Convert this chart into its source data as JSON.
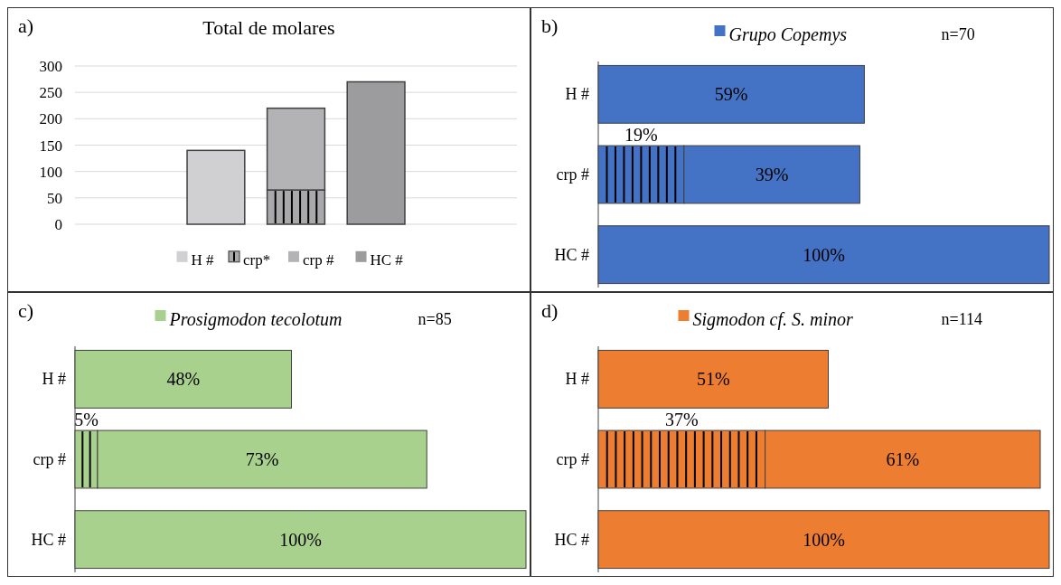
{
  "chart_data": [
    {
      "type": "bar",
      "title": "Total de molares",
      "annotations": [
        "a)"
      ],
      "categories": [
        null,
        null,
        null
      ],
      "stacked": true,
      "ylim": [
        0,
        300
      ],
      "yticks": [
        0,
        50,
        100,
        150,
        200,
        250,
        300
      ],
      "grid": "y",
      "legend": "bottom",
      "series": [
        {
          "name": "H #",
          "color": "#d0d0d2",
          "values": [
            140,
            null,
            null
          ]
        },
        {
          "name": "crp*",
          "color": "#a9a9ac",
          "line_style": "solid",
          "values": [
            null,
            65,
            null
          ]
        },
        {
          "name": "crp #",
          "color": "#b3b3b5",
          "values": [
            null,
            155,
            null
          ]
        },
        {
          "name": "HC #",
          "color": "#9c9c9f",
          "values": [
            null,
            null,
            270
          ]
        }
      ]
    },
    {
      "type": "bar",
      "orientation": "horizontal",
      "stacked": true,
      "subtitle": "n=70",
      "annotations": [
        "b)"
      ],
      "categories": [
        "H #",
        "crp #",
        "HC #"
      ],
      "legend": "top",
      "series": [
        {
          "color": "#4472c4",
          "line_style": "solid",
          "values": [
            null,
            19,
            null
          ],
          "value_labels": [
            null,
            "19%",
            null
          ]
        },
        {
          "name": "Grupo Copemys",
          "color": "#4472c4",
          "values": [
            59,
            39,
            100
          ],
          "value_labels": [
            "59%",
            "39%",
            "100%"
          ]
        }
      ]
    },
    {
      "type": "bar",
      "orientation": "horizontal",
      "stacked": true,
      "subtitle": "n=85",
      "annotations": [
        "c)"
      ],
      "categories": [
        "H #",
        "crp #",
        "HC #"
      ],
      "legend": "top",
      "series": [
        {
          "color": "#a9d18e",
          "line_style": "solid",
          "values": [
            null,
            5,
            null
          ],
          "value_labels": [
            null,
            "5%",
            null
          ]
        },
        {
          "name": "Prosigmodon tecolotum",
          "color": "#a9d18e",
          "values": [
            48,
            73,
            100
          ],
          "value_labels": [
            "48%",
            "73%",
            "100%"
          ]
        }
      ]
    },
    {
      "type": "bar",
      "orientation": "horizontal",
      "stacked": true,
      "subtitle": "n=114",
      "annotations": [
        "d)"
      ],
      "categories": [
        "H #",
        "crp #",
        "HC #"
      ],
      "legend": "top",
      "series": [
        {
          "color": "#ed7d31",
          "line_style": "solid",
          "values": [
            null,
            37,
            null
          ],
          "value_labels": [
            null,
            "37%",
            null
          ]
        },
        {
          "name": "Sigmodon cf. S. minor",
          "color": "#ed7d31",
          "values": [
            51,
            61,
            100
          ],
          "value_labels": [
            "51%",
            "61%",
            "100%"
          ]
        }
      ]
    }
  ]
}
